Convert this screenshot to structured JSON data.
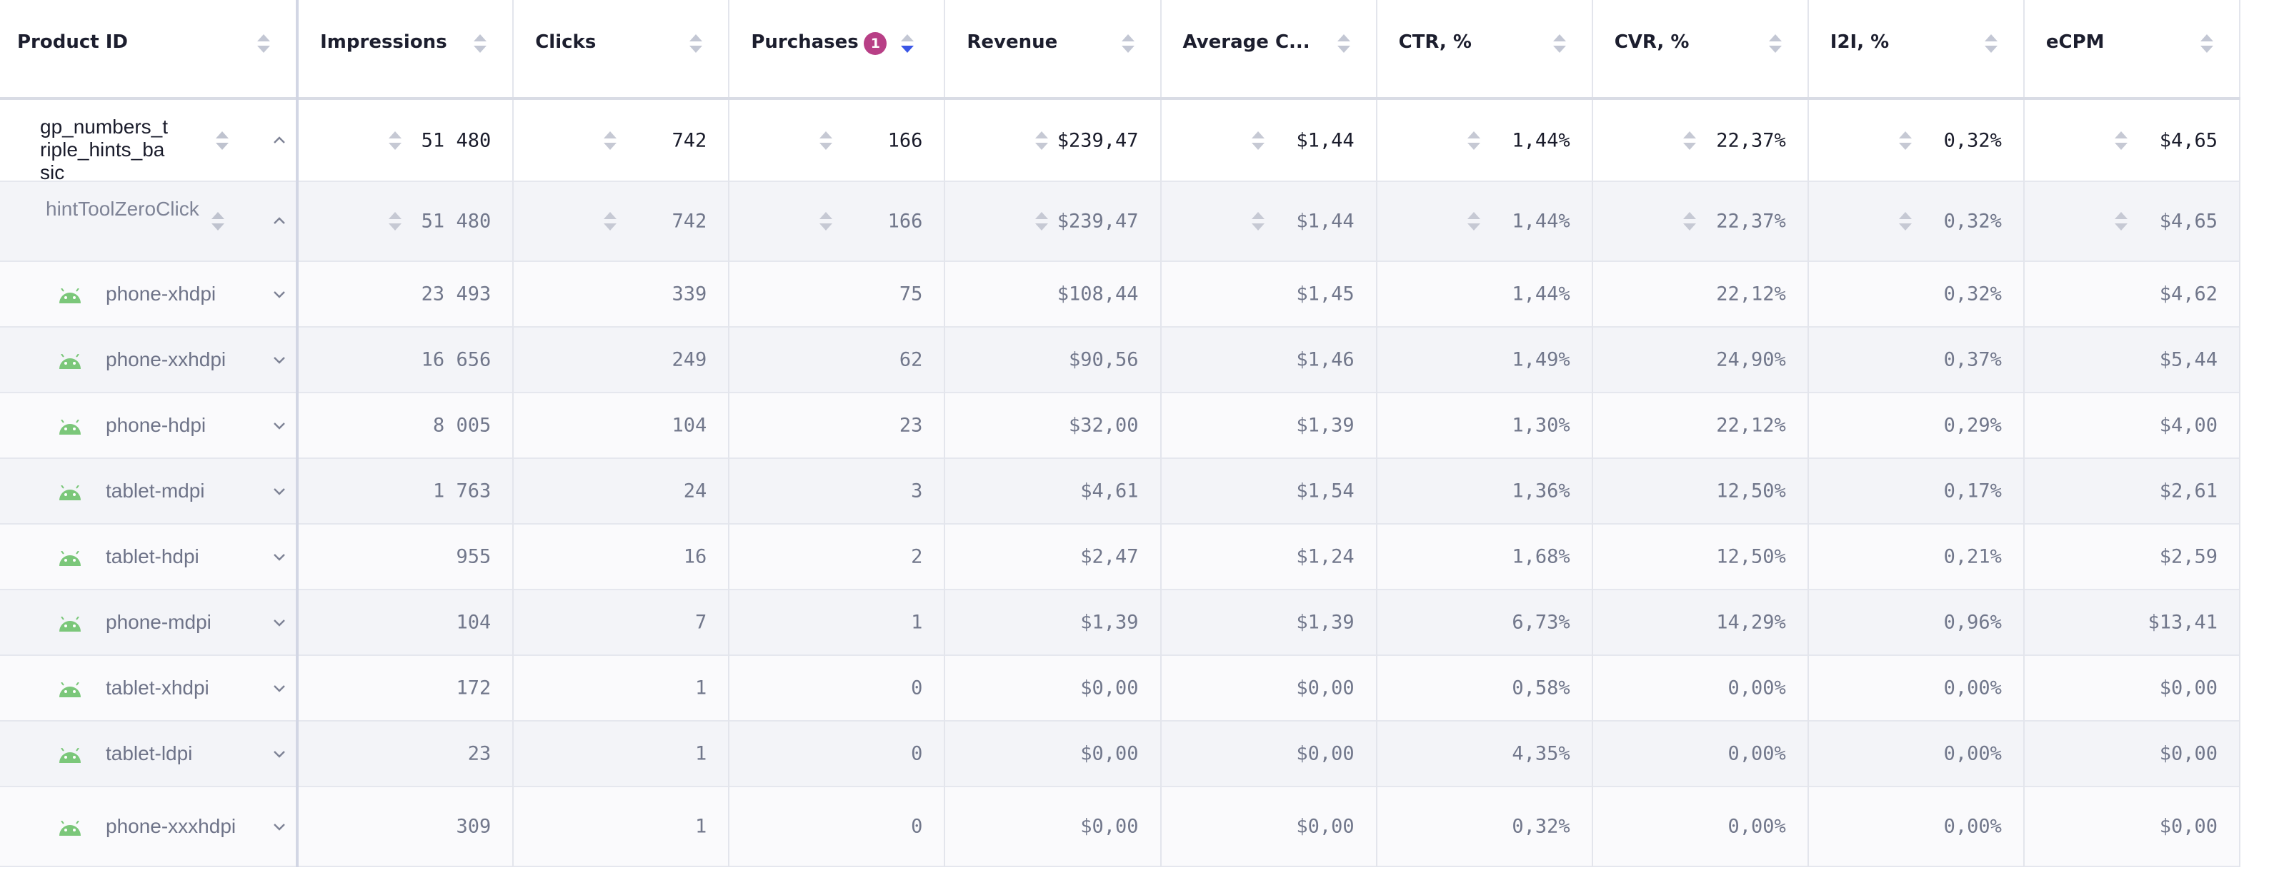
{
  "colors": {
    "sort_badge": "#b83f86",
    "sort_active": "#3a56e6",
    "android": "#7bc77a"
  },
  "headers": {
    "product_id": "Product ID",
    "impressions": "Impressions",
    "clicks": "Clicks",
    "purchases": "Purchases",
    "purchases_sort_order": "1",
    "revenue": "Revenue",
    "avg_check": "Average C...",
    "ctr": "CTR, %",
    "cvr": "CVR, %",
    "i2i": "I2I, %",
    "ecpm": "eCPM"
  },
  "rows": [
    {
      "name": "gp_numbers_triple_hints_basic",
      "impressions": "51 480",
      "clicks": "742",
      "purchases": "166",
      "revenue": "$239,47",
      "avg": "$1,44",
      "ctr": "1,44%",
      "cvr": "22,37%",
      "i2i": "0,32%",
      "ecpm": "$4,65"
    },
    {
      "name": "hintToolZeroClick",
      "impressions": "51 480",
      "clicks": "742",
      "purchases": "166",
      "revenue": "$239,47",
      "avg": "$1,44",
      "ctr": "1,44%",
      "cvr": "22,37%",
      "i2i": "0,32%",
      "ecpm": "$4,65"
    },
    {
      "name": "phone-xhdpi",
      "icon": "android-icon",
      "impressions": "23 493",
      "clicks": "339",
      "purchases": "75",
      "revenue": "$108,44",
      "avg": "$1,45",
      "ctr": "1,44%",
      "cvr": "22,12%",
      "i2i": "0,32%",
      "ecpm": "$4,62"
    },
    {
      "name": "phone-xxhdpi",
      "icon": "android-icon",
      "impressions": "16 656",
      "clicks": "249",
      "purchases": "62",
      "revenue": "$90,56",
      "avg": "$1,46",
      "ctr": "1,49%",
      "cvr": "24,90%",
      "i2i": "0,37%",
      "ecpm": "$5,44"
    },
    {
      "name": "phone-hdpi",
      "icon": "android-icon",
      "impressions": "8 005",
      "clicks": "104",
      "purchases": "23",
      "revenue": "$32,00",
      "avg": "$1,39",
      "ctr": "1,30%",
      "cvr": "22,12%",
      "i2i": "0,29%",
      "ecpm": "$4,00"
    },
    {
      "name": "tablet-mdpi",
      "icon": "android-icon",
      "impressions": "1 763",
      "clicks": "24",
      "purchases": "3",
      "revenue": "$4,61",
      "avg": "$1,54",
      "ctr": "1,36%",
      "cvr": "12,50%",
      "i2i": "0,17%",
      "ecpm": "$2,61"
    },
    {
      "name": "tablet-hdpi",
      "icon": "android-icon",
      "impressions": "955",
      "clicks": "16",
      "purchases": "2",
      "revenue": "$2,47",
      "avg": "$1,24",
      "ctr": "1,68%",
      "cvr": "12,50%",
      "i2i": "0,21%",
      "ecpm": "$2,59"
    },
    {
      "name": "phone-mdpi",
      "icon": "android-icon",
      "impressions": "104",
      "clicks": "7",
      "purchases": "1",
      "revenue": "$1,39",
      "avg": "$1,39",
      "ctr": "6,73%",
      "cvr": "14,29%",
      "i2i": "0,96%",
      "ecpm": "$13,41"
    },
    {
      "name": "tablet-xhdpi",
      "icon": "android-icon",
      "impressions": "172",
      "clicks": "1",
      "purchases": "0",
      "revenue": "$0,00",
      "avg": "$0,00",
      "ctr": "0,58%",
      "cvr": "0,00%",
      "i2i": "0,00%",
      "ecpm": "$0,00"
    },
    {
      "name": "tablet-ldpi",
      "icon": "android-icon",
      "impressions": "23",
      "clicks": "1",
      "purchases": "0",
      "revenue": "$0,00",
      "avg": "$0,00",
      "ctr": "4,35%",
      "cvr": "0,00%",
      "i2i": "0,00%",
      "ecpm": "$0,00"
    },
    {
      "name": "phone-xxxhdpi",
      "icon": "android-icon",
      "impressions": "309",
      "clicks": "1",
      "purchases": "0",
      "revenue": "$0,00",
      "avg": "$0,00",
      "ctr": "0,32%",
      "cvr": "0,00%",
      "i2i": "0,00%",
      "ecpm": "$0,00"
    }
  ]
}
